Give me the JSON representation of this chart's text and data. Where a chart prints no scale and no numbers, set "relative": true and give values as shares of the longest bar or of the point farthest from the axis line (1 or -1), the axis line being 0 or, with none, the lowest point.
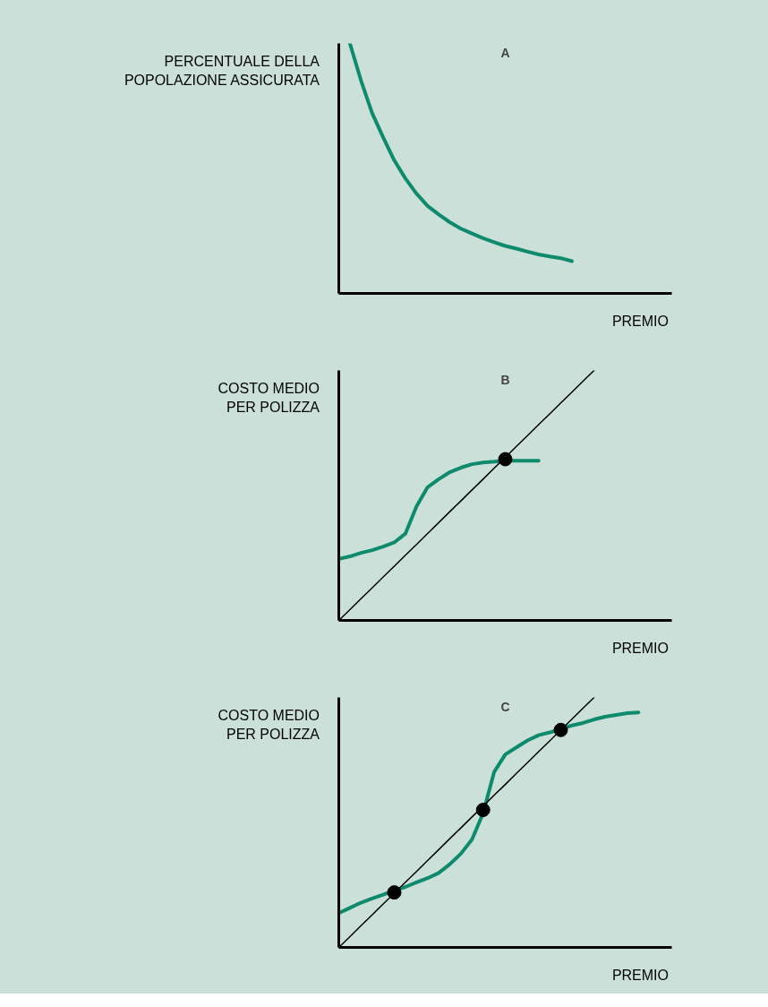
{
  "chart_data": [
    {
      "type": "line",
      "title": "A",
      "ylabel": "PERCENTUALE DELLA\nPOPOLAZIONE ASSICURATA",
      "xlabel": "PREMIO",
      "relative": true,
      "line_style": "solid",
      "categories": [
        null,
        null,
        null,
        null,
        null,
        null,
        null,
        null,
        null,
        null,
        null,
        null,
        null,
        null,
        null,
        null,
        null,
        null,
        null,
        null,
        null,
        null,
        null,
        null,
        null,
        null,
        null,
        null,
        null,
        null,
        null
      ],
      "series": [
        {
          "color": "#0e8a6c",
          "values": [
            null,
            1,
            0.852,
            0.722,
            0.624,
            0.532,
            0.46,
            0.399,
            0.35,
            0.316,
            0.285,
            0.259,
            0.24,
            0.221,
            0.205,
            0.19,
            0.179,
            0.167,
            0.156,
            0.148,
            0.141,
            0.129,
            null,
            null,
            null,
            null,
            null,
            null,
            null,
            null,
            null
          ]
        }
      ]
    },
    {
      "type": "line",
      "title": "B",
      "ylabel": "COSTO MEDIO\nPER POLIZZA",
      "xlabel": "PREMIO",
      "relative": true,
      "line_style": "solid",
      "categories": [
        null,
        null,
        null,
        null,
        null,
        null,
        null,
        null,
        null,
        null,
        null,
        null,
        null,
        null,
        null,
        null,
        null,
        null,
        null,
        null,
        null,
        null,
        null,
        null,
        null,
        null,
        null,
        null,
        null,
        null,
        null
      ],
      "series": [
        {
          "color": "#0e8a6c",
          "values": [
            0.246,
            0.256,
            0.27,
            0.281,
            0.295,
            0.312,
            0.347,
            0.456,
            0.533,
            0.565,
            0.593,
            0.611,
            0.625,
            0.632,
            0.635,
            0.639,
            0.639,
            0.639,
            0.639,
            null,
            null,
            null,
            null,
            null,
            null,
            null,
            null,
            null,
            null,
            null,
            null
          ]
        },
        {
          "color": "#000000",
          "values": [
            0,
            0.043,
            0.087,
            0.13,
            0.174,
            0.217,
            0.261,
            0.304,
            0.348,
            0.391,
            0.435,
            0.478,
            0.522,
            0.565,
            0.609,
            0.652,
            0.696,
            0.739,
            0.783,
            0.826,
            0.87,
            0.913,
            0.957,
            1,
            null,
            null,
            null,
            null,
            null,
            null,
            null
          ]
        },
        {
          "type": "scatter",
          "marker": "circle",
          "color": "#000000",
          "values": [
            null,
            null,
            null,
            null,
            null,
            null,
            null,
            null,
            null,
            null,
            null,
            null,
            null,
            null,
            null,
            0.645,
            null,
            null,
            null,
            null,
            null,
            null,
            null,
            null,
            null,
            null,
            null,
            null,
            null,
            null,
            null
          ]
        }
      ]
    },
    {
      "type": "line",
      "title": "C",
      "ylabel": "COSTO MEDIO\nPER POLIZZA",
      "xlabel": "PREMIO",
      "relative": true,
      "line_style": "solid",
      "categories": [
        null,
        null,
        null,
        null,
        null,
        null,
        null,
        null,
        null,
        null,
        null,
        null,
        null,
        null,
        null,
        null,
        null,
        null,
        null,
        null,
        null,
        null,
        null,
        null,
        null,
        null,
        null,
        null,
        null,
        null,
        null
      ],
      "series": [
        {
          "color": "#0e8a6c",
          "values": [
            0.137,
            0.158,
            0.179,
            0.196,
            0.211,
            0.228,
            0.242,
            0.26,
            0.277,
            0.298,
            0.333,
            0.375,
            0.432,
            0.537,
            0.702,
            0.772,
            0.8,
            0.828,
            0.849,
            0.86,
            0.874,
            0.888,
            0.898,
            0.912,
            0.923,
            0.93,
            0.937,
            0.94,
            null,
            null,
            null
          ]
        },
        {
          "color": "#000000",
          "values": [
            0,
            0.043,
            0.087,
            0.13,
            0.174,
            0.217,
            0.261,
            0.304,
            0.348,
            0.391,
            0.435,
            0.478,
            0.522,
            0.565,
            0.609,
            0.652,
            0.696,
            0.739,
            0.783,
            0.826,
            0.87,
            0.913,
            0.957,
            1,
            null,
            null,
            null,
            null,
            null,
            null,
            null
          ]
        },
        {
          "type": "scatter",
          "marker": "circle",
          "color": "#000000",
          "values": [
            null,
            null,
            null,
            null,
            null,
            0.22,
            null,
            null,
            null,
            null,
            null,
            null,
            null,
            0.55,
            null,
            null,
            null,
            null,
            null,
            null,
            0.87,
            null,
            null,
            null,
            null,
            null,
            null,
            null,
            null,
            null,
            null
          ]
        }
      ]
    }
  ]
}
